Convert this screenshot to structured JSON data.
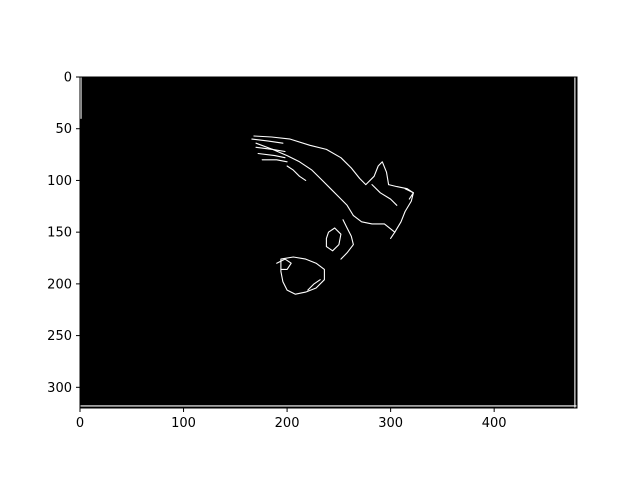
{
  "chart_data": {
    "type": "image",
    "title": "",
    "xlabel": "",
    "ylabel": "",
    "xlim": [
      0,
      480
    ],
    "ylim": [
      320,
      0
    ],
    "xticks": [
      0,
      100,
      200,
      300,
      400
    ],
    "yticks": [
      0,
      50,
      100,
      150,
      200,
      250,
      300
    ],
    "grid": false,
    "background_color": "#000000",
    "edge_color": "#ffffff",
    "description_subject": "edge-detected outline of a bird of prey in flight",
    "outline_paths": [
      {
        "name": "wing-top-edge",
        "points": [
          [
            168,
            57
          ],
          [
            185,
            58
          ],
          [
            203,
            60
          ],
          [
            222,
            66
          ],
          [
            238,
            70
          ],
          [
            252,
            78
          ],
          [
            262,
            88
          ],
          [
            270,
            98
          ],
          [
            276,
            104
          ]
        ]
      },
      {
        "name": "wing-bottom-edge",
        "points": [
          [
            170,
            64
          ],
          [
            186,
            70
          ],
          [
            200,
            76
          ],
          [
            212,
            82
          ],
          [
            224,
            90
          ],
          [
            234,
            100
          ],
          [
            242,
            108
          ],
          [
            250,
            116
          ],
          [
            258,
            124
          ],
          [
            264,
            134
          ]
        ]
      },
      {
        "name": "feather-1",
        "points": [
          [
            166,
            60
          ],
          [
            182,
            62
          ],
          [
            196,
            64
          ]
        ]
      },
      {
        "name": "feather-2",
        "points": [
          [
            170,
            68
          ],
          [
            186,
            70
          ],
          [
            198,
            72
          ]
        ]
      },
      {
        "name": "feather-3",
        "points": [
          [
            172,
            74
          ],
          [
            188,
            76
          ],
          [
            198,
            78
          ]
        ]
      },
      {
        "name": "feather-4",
        "points": [
          [
            176,
            80
          ],
          [
            190,
            80
          ],
          [
            200,
            82
          ]
        ]
      },
      {
        "name": "wing-spots",
        "points": [
          [
            200,
            86
          ],
          [
            206,
            90
          ],
          [
            212,
            96
          ],
          [
            218,
            100
          ]
        ]
      },
      {
        "name": "head-back",
        "points": [
          [
            276,
            104
          ],
          [
            284,
            96
          ],
          [
            288,
            86
          ],
          [
            292,
            82
          ],
          [
            296,
            92
          ],
          [
            298,
            104
          ]
        ]
      },
      {
        "name": "head-front",
        "points": [
          [
            298,
            104
          ],
          [
            306,
            106
          ],
          [
            316,
            108
          ],
          [
            322,
            112
          ],
          [
            320,
            120
          ],
          [
            314,
            130
          ],
          [
            310,
            140
          ],
          [
            304,
            150
          ]
        ]
      },
      {
        "name": "throat",
        "points": [
          [
            282,
            104
          ],
          [
            290,
            112
          ],
          [
            300,
            118
          ],
          [
            306,
            124
          ]
        ]
      },
      {
        "name": "beak",
        "points": [
          [
            314,
            108
          ],
          [
            322,
            112
          ],
          [
            318,
            118
          ]
        ]
      },
      {
        "name": "body-underside",
        "points": [
          [
            264,
            134
          ],
          [
            272,
            140
          ],
          [
            282,
            142
          ],
          [
            294,
            142
          ],
          [
            304,
            150
          ],
          [
            300,
            156
          ]
        ]
      },
      {
        "name": "leg",
        "points": [
          [
            254,
            138
          ],
          [
            258,
            146
          ],
          [
            262,
            154
          ],
          [
            264,
            162
          ],
          [
            258,
            170
          ],
          [
            252,
            176
          ]
        ]
      },
      {
        "name": "talon-loop",
        "points": [
          [
            240,
            150
          ],
          [
            246,
            146
          ],
          [
            252,
            152
          ],
          [
            250,
            162
          ],
          [
            244,
            168
          ],
          [
            238,
            164
          ],
          [
            238,
            156
          ],
          [
            240,
            150
          ]
        ]
      },
      {
        "name": "prey-outline",
        "points": [
          [
            194,
            176
          ],
          [
            206,
            174
          ],
          [
            218,
            176
          ],
          [
            228,
            180
          ],
          [
            236,
            186
          ],
          [
            236,
            196
          ],
          [
            228,
            204
          ],
          [
            218,
            208
          ],
          [
            208,
            210
          ],
          [
            200,
            206
          ],
          [
            196,
            198
          ],
          [
            194,
            188
          ],
          [
            194,
            176
          ]
        ]
      },
      {
        "name": "prey-head",
        "points": [
          [
            190,
            180
          ],
          [
            198,
            176
          ],
          [
            204,
            180
          ],
          [
            200,
            186
          ],
          [
            194,
            186
          ]
        ]
      },
      {
        "name": "prey-legs",
        "points": [
          [
            220,
            206
          ],
          [
            226,
            200
          ],
          [
            232,
            196
          ]
        ]
      },
      {
        "name": "right-frame-edge",
        "points": [
          [
            478,
            0
          ],
          [
            478,
            320
          ]
        ]
      },
      {
        "name": "bottom-frame-edge",
        "points": [
          [
            0,
            318
          ],
          [
            480,
            318
          ]
        ]
      },
      {
        "name": "left-frame-edge",
        "points": [
          [
            1,
            0
          ],
          [
            1,
            40
          ]
        ]
      }
    ]
  }
}
